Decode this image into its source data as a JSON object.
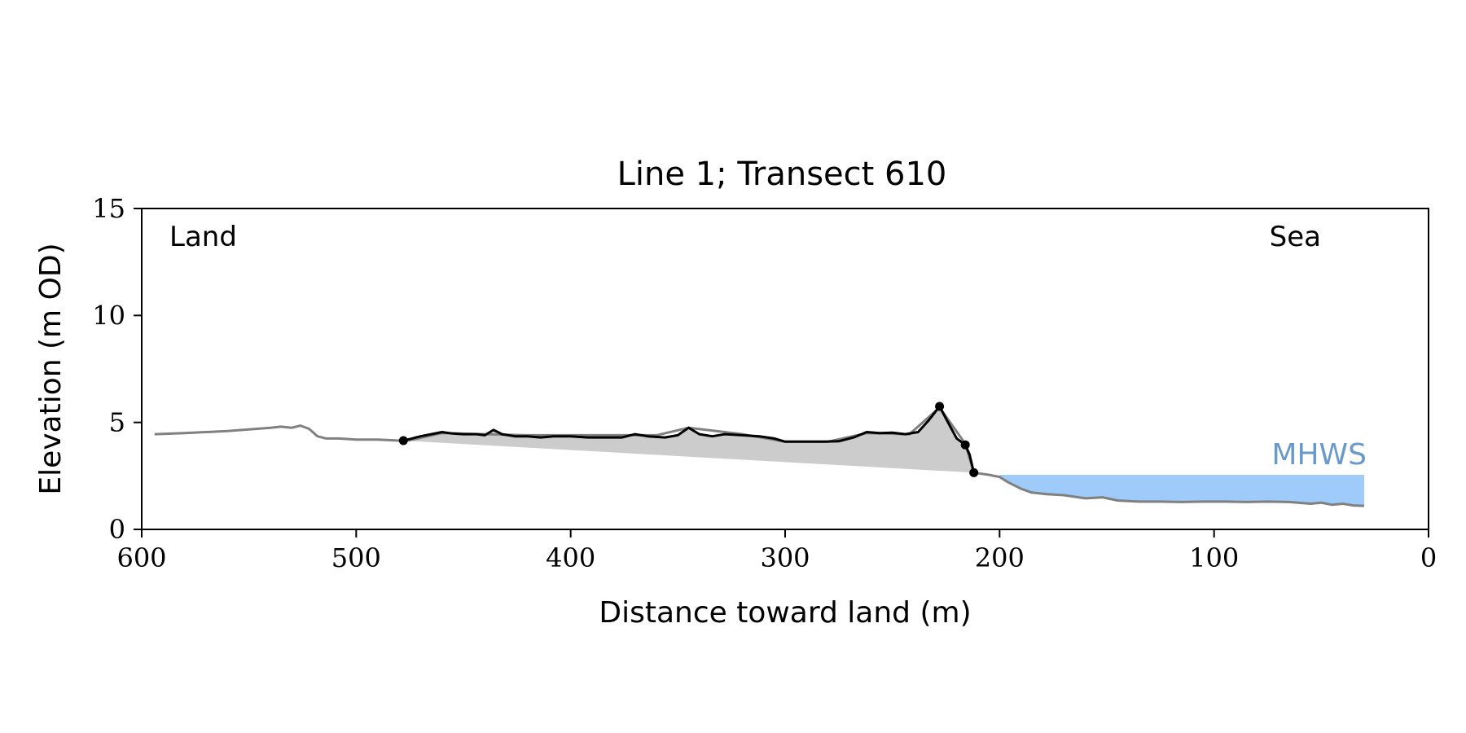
{
  "chart_data": {
    "type": "line",
    "title": "Line 1; Transect 610",
    "xlabel": "Distance toward land (m)",
    "ylabel": "Elevation (m OD)",
    "xlim": [
      600,
      0
    ],
    "ylim": [
      0,
      15
    ],
    "x_reversed": true,
    "xticks": [
      600,
      500,
      400,
      300,
      200,
      100,
      0
    ],
    "yticks": [
      0,
      5,
      10,
      15
    ],
    "grid": false,
    "annotations": {
      "land": "Land",
      "sea": "Sea",
      "mhws": "MHWS"
    },
    "mhws_level": 2.55,
    "mhws_x_range": [
      200,
      30
    ],
    "colors": {
      "full_profile": "#808080",
      "dune_profile": "#000000",
      "dune_fill": "#cccccc",
      "water_fill": "#9ecbfa",
      "mhws_text": "#6a9ac9"
    },
    "series": [
      {
        "role": "full-profile",
        "points": [
          [
            594,
            4.45
          ],
          [
            580,
            4.5
          ],
          [
            560,
            4.6
          ],
          [
            540,
            4.75
          ],
          [
            535,
            4.8
          ],
          [
            530,
            4.75
          ],
          [
            526,
            4.85
          ],
          [
            522,
            4.7
          ],
          [
            518,
            4.35
          ],
          [
            514,
            4.25
          ],
          [
            508,
            4.25
          ],
          [
            500,
            4.2
          ],
          [
            490,
            4.2
          ],
          [
            480,
            4.15
          ],
          [
            476,
            4.15
          ],
          [
            460,
            4.5
          ],
          [
            440,
            4.45
          ],
          [
            420,
            4.4
          ],
          [
            400,
            4.4
          ],
          [
            380,
            4.4
          ],
          [
            360,
            4.4
          ],
          [
            345,
            4.75
          ],
          [
            320,
            4.45
          ],
          [
            300,
            4.1
          ],
          [
            280,
            4.1
          ],
          [
            262,
            4.5
          ],
          [
            242,
            4.45
          ],
          [
            228,
            5.7
          ],
          [
            216,
            4.0
          ],
          [
            212,
            2.65
          ],
          [
            205,
            2.55
          ],
          [
            200,
            2.45
          ],
          [
            196,
            2.2
          ],
          [
            190,
            1.9
          ],
          [
            185,
            1.72
          ],
          [
            178,
            1.65
          ],
          [
            170,
            1.6
          ],
          [
            160,
            1.45
          ],
          [
            152,
            1.5
          ],
          [
            145,
            1.35
          ],
          [
            135,
            1.3
          ],
          [
            125,
            1.3
          ],
          [
            115,
            1.28
          ],
          [
            105,
            1.3
          ],
          [
            95,
            1.3
          ],
          [
            85,
            1.28
          ],
          [
            75,
            1.3
          ],
          [
            65,
            1.28
          ],
          [
            55,
            1.2
          ],
          [
            50,
            1.25
          ],
          [
            45,
            1.15
          ],
          [
            40,
            1.2
          ],
          [
            35,
            1.12
          ],
          [
            30,
            1.1
          ]
        ]
      },
      {
        "role": "dune-profile",
        "points": [
          [
            478,
            4.15
          ],
          [
            474,
            4.25
          ],
          [
            470,
            4.35
          ],
          [
            465,
            4.45
          ],
          [
            460,
            4.55
          ],
          [
            455,
            4.48
          ],
          [
            450,
            4.45
          ],
          [
            444,
            4.45
          ],
          [
            440,
            4.4
          ],
          [
            436,
            4.65
          ],
          [
            432,
            4.45
          ],
          [
            426,
            4.35
          ],
          [
            420,
            4.35
          ],
          [
            414,
            4.3
          ],
          [
            408,
            4.35
          ],
          [
            400,
            4.35
          ],
          [
            392,
            4.3
          ],
          [
            384,
            4.3
          ],
          [
            376,
            4.3
          ],
          [
            370,
            4.45
          ],
          [
            364,
            4.35
          ],
          [
            356,
            4.3
          ],
          [
            350,
            4.4
          ],
          [
            345,
            4.75
          ],
          [
            340,
            4.45
          ],
          [
            334,
            4.35
          ],
          [
            328,
            4.45
          ],
          [
            320,
            4.4
          ],
          [
            312,
            4.35
          ],
          [
            305,
            4.25
          ],
          [
            300,
            4.1
          ],
          [
            290,
            4.1
          ],
          [
            282,
            4.1
          ],
          [
            275,
            4.12
          ],
          [
            268,
            4.3
          ],
          [
            262,
            4.55
          ],
          [
            256,
            4.5
          ],
          [
            250,
            4.52
          ],
          [
            244,
            4.45
          ],
          [
            238,
            4.55
          ],
          [
            233,
            5.1
          ],
          [
            228,
            5.75
          ],
          [
            223,
            4.8
          ],
          [
            220,
            4.25
          ],
          [
            216,
            3.95
          ],
          [
            214,
            3.5
          ],
          [
            212,
            2.65
          ]
        ]
      },
      {
        "role": "dune-toe-line",
        "points": [
          [
            478,
            4.15
          ],
          [
            212,
            2.65
          ]
        ]
      },
      {
        "role": "dune-markers",
        "points": [
          [
            478,
            4.15
          ],
          [
            228,
            5.75
          ],
          [
            216,
            3.95
          ],
          [
            212,
            2.65
          ]
        ]
      }
    ]
  }
}
